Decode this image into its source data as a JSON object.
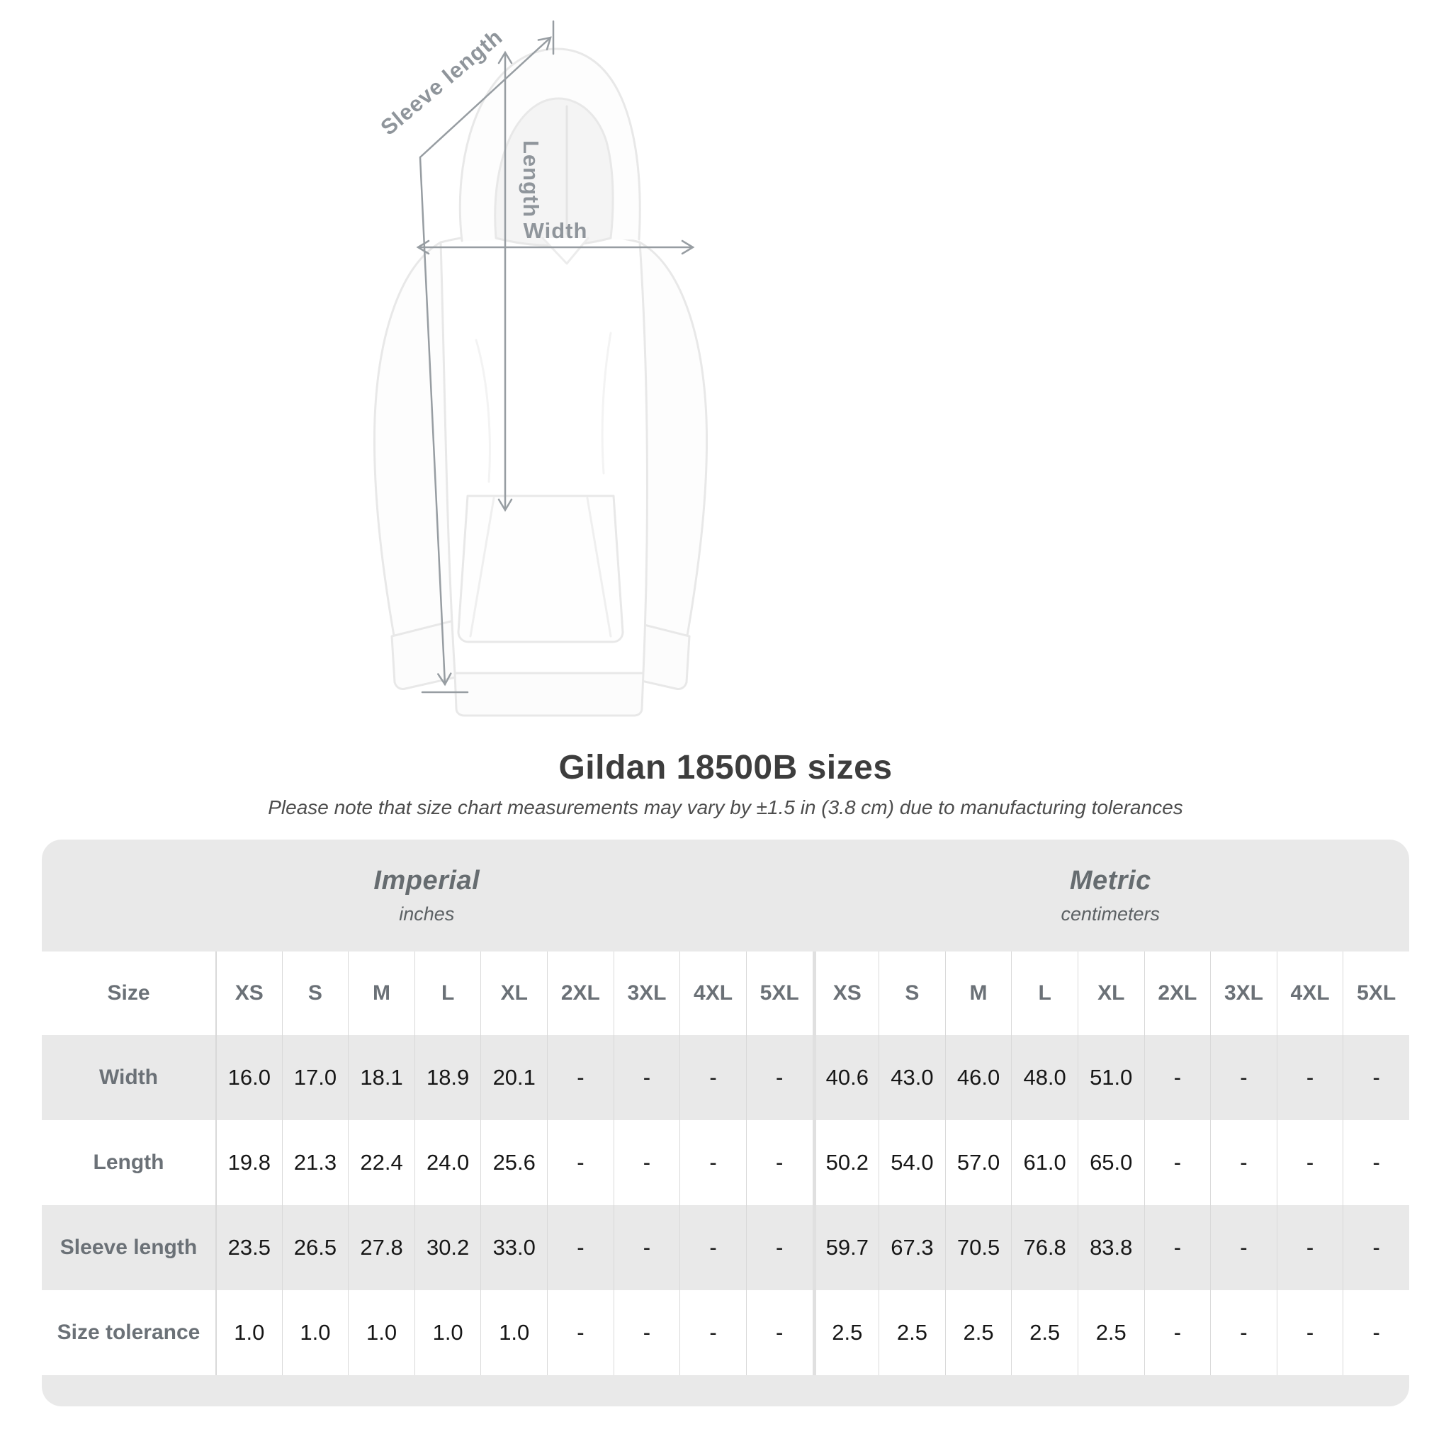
{
  "diagram": {
    "sleeve_length_label": "Sleeve length",
    "length_label": "Length",
    "width_label": "Width"
  },
  "heading": {
    "title": "Gildan 18500B sizes",
    "note": "Please note that size chart measurements may vary by ±1.5 in (3.8 cm) due to manufacturing tolerances"
  },
  "chart_data": {
    "type": "table",
    "title": "Gildan 18500B sizes",
    "note": "Please note that size chart measurements may vary by ±1.5 in (3.8 cm) due to manufacturing tolerances",
    "unit_groups": [
      {
        "label": "Imperial",
        "unit": "inches"
      },
      {
        "label": "Metric",
        "unit": "centimeters"
      }
    ],
    "corner_label": "Size",
    "columns": [
      "XS",
      "S",
      "M",
      "L",
      "XL",
      "2XL",
      "3XL",
      "4XL",
      "5XL"
    ],
    "rows": [
      {
        "label": "Width",
        "imperial": [
          "16.0",
          "17.0",
          "18.1",
          "18.9",
          "20.1",
          "-",
          "-",
          "-",
          "-"
        ],
        "metric": [
          "40.6",
          "43.0",
          "46.0",
          "48.0",
          "51.0",
          "-",
          "-",
          "-",
          "-"
        ]
      },
      {
        "label": "Length",
        "imperial": [
          "19.8",
          "21.3",
          "22.4",
          "24.0",
          "25.6",
          "-",
          "-",
          "-",
          "-"
        ],
        "metric": [
          "50.2",
          "54.0",
          "57.0",
          "61.0",
          "65.0",
          "-",
          "-",
          "-",
          "-"
        ]
      },
      {
        "label": "Sleeve length",
        "imperial": [
          "23.5",
          "26.5",
          "27.8",
          "30.2",
          "33.0",
          "-",
          "-",
          "-",
          "-"
        ],
        "metric": [
          "59.7",
          "67.3",
          "70.5",
          "76.8",
          "83.8",
          "-",
          "-",
          "-",
          "-"
        ]
      },
      {
        "label": "Size tolerance",
        "imperial": [
          "1.0",
          "1.0",
          "1.0",
          "1.0",
          "1.0",
          "-",
          "-",
          "-",
          "-"
        ],
        "metric": [
          "2.5",
          "2.5",
          "2.5",
          "2.5",
          "2.5",
          "-",
          "-",
          "-",
          "-"
        ]
      }
    ]
  },
  "colors": {
    "band_gray": "#e9e9e9",
    "value_text": "#161616",
    "muted_text": "#6b7177",
    "annotation_gray": "#979da2",
    "title_text": "#3d3d3d",
    "divider": "#d9d9d9"
  }
}
